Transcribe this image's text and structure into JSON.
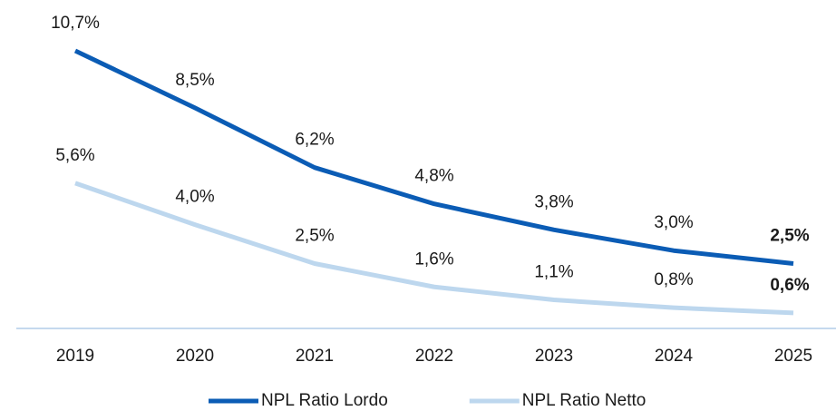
{
  "chart_data": {
    "type": "line",
    "categories": [
      "2019",
      "2020",
      "2021",
      "2022",
      "2023",
      "2024",
      "2025"
    ],
    "series": [
      {
        "name": "NPL Ratio Lordo",
        "color": "#0b5cb5",
        "values": [
          10.7,
          8.5,
          6.2,
          4.8,
          3.8,
          3.0,
          2.5
        ],
        "value_labels": [
          "10,7%",
          "8,5%",
          "6,2%",
          "4,8%",
          "3,8%",
          "3,0%",
          "2,5%"
        ]
      },
      {
        "name": "NPL Ratio Netto",
        "color": "#bdd7ee",
        "values": [
          5.6,
          4.0,
          2.5,
          1.6,
          1.1,
          0.8,
          0.6
        ],
        "value_labels": [
          "5,6%",
          "4,0%",
          "2,5%",
          "1,6%",
          "1,1%",
          "0,8%",
          "0,6%"
        ]
      }
    ],
    "legend": "bottom"
  }
}
